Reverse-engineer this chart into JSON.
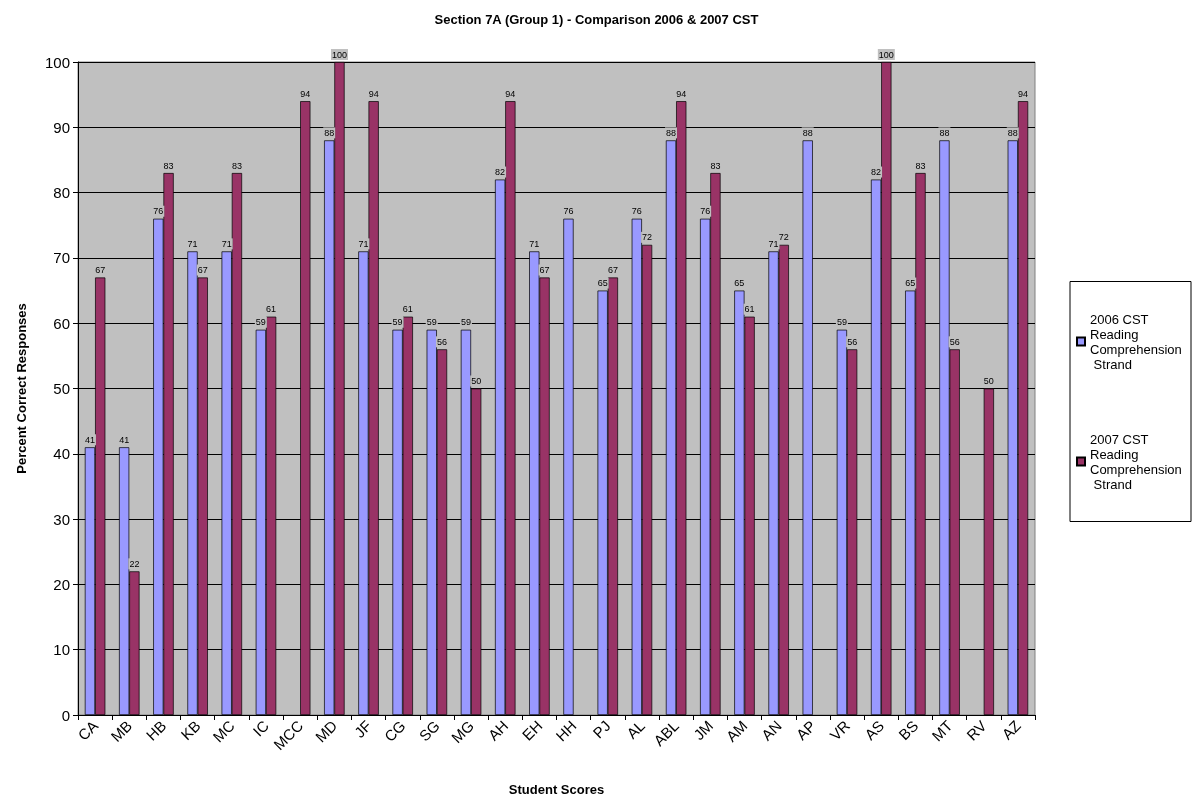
{
  "chart_data": {
    "type": "bar",
    "title": "Section 7A (Group 1) - Comparison 2006 & 2007 CST",
    "xlabel": "Student Scores",
    "ylabel": "Percent Correct Responses",
    "categories": [
      "CA",
      "MB",
      "HB",
      "KB",
      "MC",
      "IC",
      "MCC",
      "MD",
      "JF",
      "CG",
      "SG",
      "MG",
      "AH",
      "EH",
      "HH",
      "PJ",
      "AL",
      "ABL",
      "JM",
      "AM",
      "AN",
      "AP",
      "VR",
      "AS",
      "BS",
      "MT",
      "RV",
      "AZ"
    ],
    "series": [
      {
        "name": "2006 CST Reading Comprehension Strand",
        "color": "#9999ff",
        "values": [
          41,
          41,
          76,
          71,
          71,
          59,
          null,
          88,
          71,
          59,
          59,
          59,
          82,
          71,
          76,
          65,
          76,
          88,
          76,
          65,
          71,
          88,
          59,
          82,
          65,
          88,
          null,
          88
        ]
      },
      {
        "name": "2007 CST Reading Comprehension Strand",
        "color": "#993366",
        "values": [
          67,
          22,
          83,
          67,
          83,
          61,
          94,
          100,
          94,
          61,
          56,
          50,
          94,
          67,
          null,
          67,
          72,
          94,
          83,
          61,
          72,
          null,
          56,
          100,
          83,
          56,
          50,
          94
        ]
      }
    ],
    "ylim": [
      0,
      100
    ],
    "yticks": [
      0,
      10,
      20,
      30,
      40,
      50,
      60,
      70,
      80,
      90,
      100
    ],
    "grid": "y",
    "legend": "right",
    "data_labels": true
  }
}
